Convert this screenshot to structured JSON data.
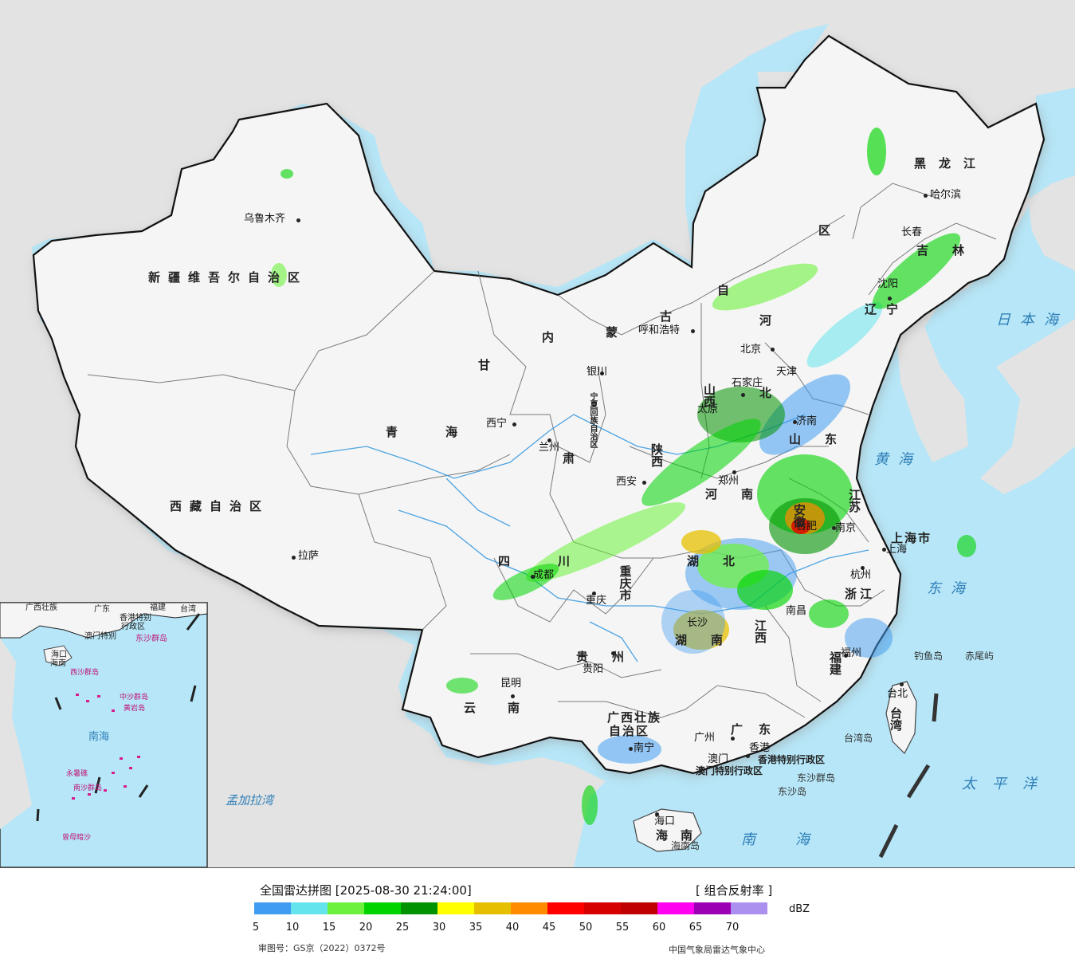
{
  "map": {
    "colors": {
      "sea": "#b6e6f7",
      "land_out": "#e3e3e3",
      "land_cn": "#f5f5f5",
      "border": "#111111",
      "river": "#3a9be0"
    },
    "cities": [
      {
        "name": "乌鲁木齐"
      },
      {
        "name": "拉萨"
      },
      {
        "name": "西宁"
      },
      {
        "name": "兰州"
      },
      {
        "name": "银川"
      },
      {
        "name": "呼和浩特"
      },
      {
        "name": "北京"
      },
      {
        "name": "天津"
      },
      {
        "name": "石家庄"
      },
      {
        "name": "太原"
      },
      {
        "name": "济南"
      },
      {
        "name": "郑州"
      },
      {
        "name": "西安"
      },
      {
        "name": "成都"
      },
      {
        "name": "重庆"
      },
      {
        "name": "贵阳"
      },
      {
        "name": "昆明"
      },
      {
        "name": "南宁"
      },
      {
        "name": "广州"
      },
      {
        "name": "香港"
      },
      {
        "name": "澳门"
      },
      {
        "name": "海口"
      },
      {
        "name": "长沙"
      },
      {
        "name": "南昌"
      },
      {
        "name": "福州"
      },
      {
        "name": "杭州"
      },
      {
        "name": "上海"
      },
      {
        "name": "南京"
      },
      {
        "name": "合肥"
      },
      {
        "name": "沈阳"
      },
      {
        "name": "长春"
      },
      {
        "name": "哈尔滨"
      },
      {
        "name": "台北"
      }
    ],
    "provinces": {
      "xinjiang": "新疆维吾尔自治区",
      "xizang": "西藏自治区",
      "qinghai": "青海",
      "neimenggu_a": "内",
      "neimenggu_b": "蒙",
      "neimenggu_c": "古",
      "neimenggu_d": "自",
      "neimenggu_e": "区",
      "gansu": "甘",
      "gansu_b": "肃",
      "ningxia": "宁夏回族自治区",
      "shaanxi": "陕西",
      "shanxi": "山西",
      "hebei_a": "河",
      "hebei_b": "北",
      "shandong": "山东",
      "henan": "河南",
      "hubei": "湖北",
      "hunan": "湖南",
      "sichuan": "四川",
      "chongqing": "重庆市",
      "guizhou": "贵州",
      "yunnan": "云南",
      "guangxi_a": "广西壮族",
      "guangxi_b": "自治区",
      "guangdong": "广东",
      "hainan": "海南",
      "jiangxi": "江西",
      "fujian": "福建",
      "zhejiang": "浙江",
      "jiangsu": "江苏",
      "anhui": "安徽",
      "shanghai": "上海市",
      "liaoning": "辽宁",
      "jilin": "吉林",
      "heilongjiang": "黑龙江",
      "taiwan": "台湾",
      "hk_sar": "香港特别行政区",
      "mo_sar": "澳门特别行政区"
    },
    "seas": {
      "japan_sea": "日本海",
      "yellow_sea": "黄海",
      "east_sea": "东海",
      "pacific": "太平洋",
      "south_sea": "南海",
      "bengal": "孟加拉湾"
    },
    "islands": {
      "diaoyu": "钓鱼岛",
      "chiwei": "赤尾屿",
      "taiwan_island": "台湾岛",
      "dongsha_q": "东沙群岛",
      "dongsha_d": "东沙岛",
      "hainan_island": "海南岛"
    },
    "inset": {
      "labels": [
        "广西壮族",
        "广东",
        "福建",
        "台湾",
        "香港特别",
        "澳门特别",
        "行政区",
        "海口",
        "海南",
        "南海",
        "东沙群岛"
      ],
      "pink_labels": [
        "西沙群岛",
        "中沙群岛",
        "南沙群岛",
        "永暑礁",
        "曾母暗沙",
        "黄岩岛"
      ]
    }
  },
  "legend": {
    "title": "全国雷达拼图 [2025-08-30 21:24:00]",
    "type": "[ 组合反射率 ]",
    "unit": "dBZ",
    "colors": [
      "#409cf0",
      "#64e4ec",
      "#6cf23c",
      "#00d400",
      "#009200",
      "#ffff00",
      "#e6c000",
      "#ff8c00",
      "#ff0000",
      "#d60000",
      "#c00000",
      "#ff00f0",
      "#9c00b4",
      "#ac90f0"
    ],
    "ticks": [
      "5",
      "10",
      "15",
      "20",
      "25",
      "30",
      "35",
      "40",
      "45",
      "50",
      "55",
      "60",
      "65",
      "70"
    ],
    "review": "审图号：GS京（2022）0372号",
    "source": "中国气象局雷达气象中心"
  }
}
